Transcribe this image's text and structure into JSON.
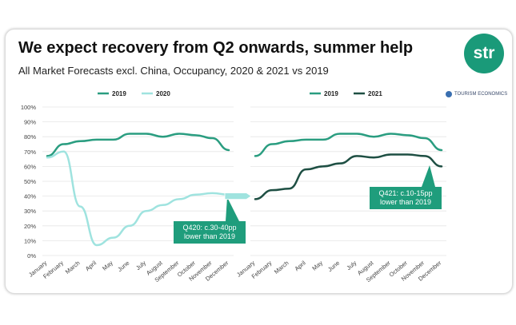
{
  "header": {
    "title": "We expect recovery from Q2 onwards, summer help",
    "subtitle": "All Market Forecasts excl. China, Occupancy, 2020 & 2021 vs 2019",
    "logo_text": "str",
    "source_text": "TOURISM ECONOMICS"
  },
  "colors": {
    "s2019": "#2a9d80",
    "s2020": "#9fe3df",
    "s2021": "#1e4f43",
    "callout": "#1f9d7c",
    "grid": "#e5e5e5"
  },
  "chart_data": [
    {
      "type": "line",
      "categories": [
        "January",
        "February",
        "March",
        "April",
        "May",
        "June",
        "July",
        "August",
        "September",
        "October",
        "November",
        "December"
      ],
      "ylim": [
        0,
        100
      ],
      "yticks": [
        "0%",
        "10%",
        "20%",
        "30%",
        "40%",
        "50%",
        "60%",
        "70%",
        "80%",
        "90%",
        "100%"
      ],
      "grid": true,
      "legend": "top-center",
      "series": [
        {
          "name": "2019",
          "values": [
            67,
            75,
            77,
            78,
            78,
            82,
            82,
            80,
            82,
            81,
            79,
            71
          ]
        },
        {
          "name": "2020",
          "values": [
            66,
            70,
            33,
            7,
            12,
            20,
            30,
            34,
            38,
            41,
            42,
            41
          ]
        }
      ],
      "annotation": {
        "lines": [
          "Q420: c.30-40pp",
          "lower than 2019"
        ]
      }
    },
    {
      "type": "line",
      "categories": [
        "January",
        "February",
        "March",
        "April",
        "May",
        "June",
        "July",
        "August",
        "September",
        "October",
        "November",
        "December"
      ],
      "ylim": [
        0,
        100
      ],
      "grid": true,
      "legend": "top-center",
      "series": [
        {
          "name": "2019",
          "values": [
            67,
            75,
            77,
            78,
            78,
            82,
            82,
            80,
            82,
            81,
            79,
            71
          ]
        },
        {
          "name": "2021",
          "values": [
            38,
            44,
            45,
            58,
            60,
            62,
            67,
            66,
            68,
            68,
            67,
            60
          ]
        }
      ],
      "annotation": {
        "lines": [
          "Q421: c.10-15pp",
          "lower than 2019"
        ]
      }
    }
  ]
}
